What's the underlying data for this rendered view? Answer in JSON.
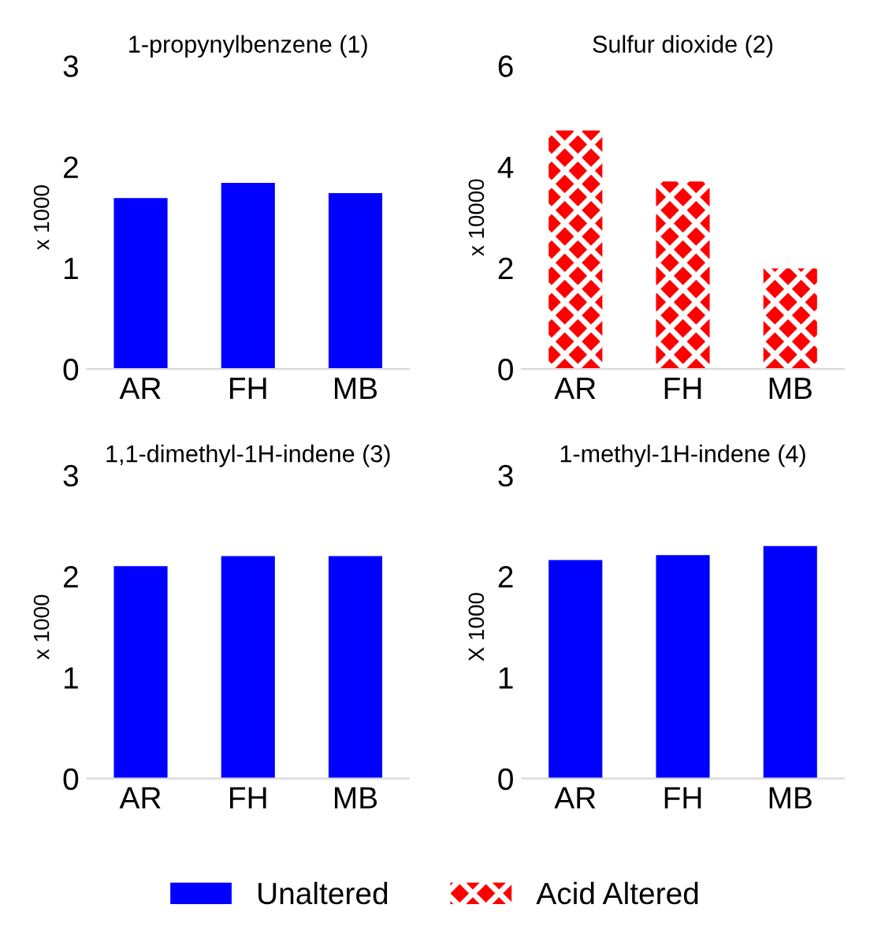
{
  "chart_data": [
    {
      "type": "bar",
      "title": "1-propynylbenzene (1)",
      "ylabel": "x 1000",
      "categories": [
        "AR",
        "FH",
        "MB"
      ],
      "series": [
        {
          "name": "Unaltered",
          "color": "#0000ff",
          "values": [
            1.69,
            1.84,
            1.74
          ]
        }
      ],
      "ylim": [
        0,
        3
      ],
      "yticks": [
        0,
        1,
        2,
        3
      ],
      "legend": "bottom"
    },
    {
      "type": "bar",
      "title": "Sulfur dioxide (2)",
      "ylabel": "x 10000",
      "categories": [
        "AR",
        "FH",
        "MB"
      ],
      "series": [
        {
          "name": "Acid Altered",
          "color": "#ff0000",
          "values": [
            4.72,
            3.71,
            1.99
          ]
        }
      ],
      "ylim": [
        0,
        6
      ],
      "yticks": [
        0,
        2,
        4,
        6
      ],
      "legend": "bottom"
    },
    {
      "type": "bar",
      "title": "1,1-dimethyl-1H-indene (3)",
      "ylabel": "x 1000",
      "categories": [
        "AR",
        "FH",
        "MB"
      ],
      "series": [
        {
          "name": "Unaltered",
          "color": "#0000ff",
          "values": [
            2.1,
            2.2,
            2.2
          ]
        }
      ],
      "ylim": [
        0,
        3
      ],
      "yticks": [
        0,
        1,
        2,
        3
      ],
      "legend": "bottom"
    },
    {
      "type": "bar",
      "title": "1-methyl-1H-indene (4)",
      "ylabel": "X 1000",
      "categories": [
        "AR",
        "FH",
        "MB"
      ],
      "series": [
        {
          "name": "Unaltered",
          "color": "#0000ff",
          "values": [
            2.16,
            2.21,
            2.3
          ]
        }
      ],
      "ylim": [
        0,
        3
      ],
      "yticks": [
        0,
        1,
        2,
        3
      ],
      "legend": "bottom"
    }
  ]
}
